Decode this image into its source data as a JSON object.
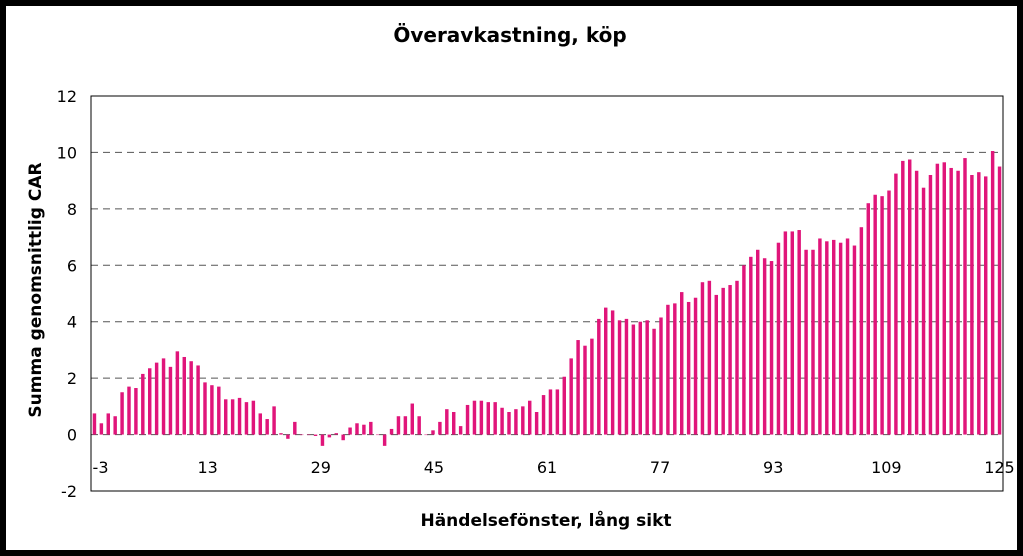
{
  "chart_data": {
    "type": "bar",
    "title": "Överavkastning, köp",
    "xlabel": "Händelsefönster, lång sikt",
    "ylabel": "Summa genomsnittlig CAR",
    "ylim": [
      -2,
      12
    ],
    "yticks": [
      -2,
      0,
      2,
      4,
      6,
      8,
      10,
      12
    ],
    "xtick_labels": [
      "-3",
      "13",
      "29",
      "45",
      "61",
      "77",
      "93",
      "109",
      "125"
    ],
    "x_start": -3,
    "x_end": 126,
    "grid": "horizontal-dashed",
    "bar_color": "#e0157a",
    "values": [
      0.75,
      0.4,
      0.75,
      0.65,
      1.5,
      1.7,
      1.65,
      2.15,
      2.35,
      2.55,
      2.7,
      2.4,
      2.95,
      2.75,
      2.6,
      2.45,
      1.85,
      1.75,
      1.7,
      1.25,
      1.25,
      1.3,
      1.15,
      1.2,
      0.75,
      0.55,
      1.0,
      0.05,
      -0.15,
      0.45,
      0.0,
      0.0,
      -0.05,
      -0.4,
      -0.1,
      0.05,
      -0.2,
      0.25,
      0.4,
      0.35,
      0.45,
      0.0,
      -0.4,
      0.2,
      0.65,
      0.65,
      1.1,
      0.65,
      0.0,
      0.15,
      0.45,
      0.9,
      0.8,
      0.3,
      1.05,
      1.2,
      1.2,
      1.15,
      1.15,
      0.95,
      0.8,
      0.9,
      1.0,
      1.2,
      0.8,
      1.4,
      1.6,
      1.6,
      2.05,
      2.7,
      3.35,
      3.15,
      3.4,
      4.1,
      4.5,
      4.4,
      4.05,
      4.1,
      3.9,
      4.0,
      4.05,
      3.75,
      4.15,
      4.6,
      4.65,
      5.05,
      4.7,
      4.85,
      5.4,
      5.45,
      4.95,
      5.2,
      5.3,
      5.45,
      6.0,
      6.3,
      6.55,
      6.25,
      6.15,
      6.8,
      7.2,
      7.2,
      7.25,
      6.55,
      6.55,
      6.95,
      6.85,
      6.9,
      6.8,
      6.95,
      6.7,
      7.35,
      8.2,
      8.5,
      8.45,
      8.65,
      9.25,
      9.7,
      9.75,
      9.35,
      8.75,
      9.2,
      9.6,
      9.65,
      9.45,
      9.35,
      9.8,
      9.2,
      9.3,
      9.15,
      10.05,
      9.5
    ]
  }
}
